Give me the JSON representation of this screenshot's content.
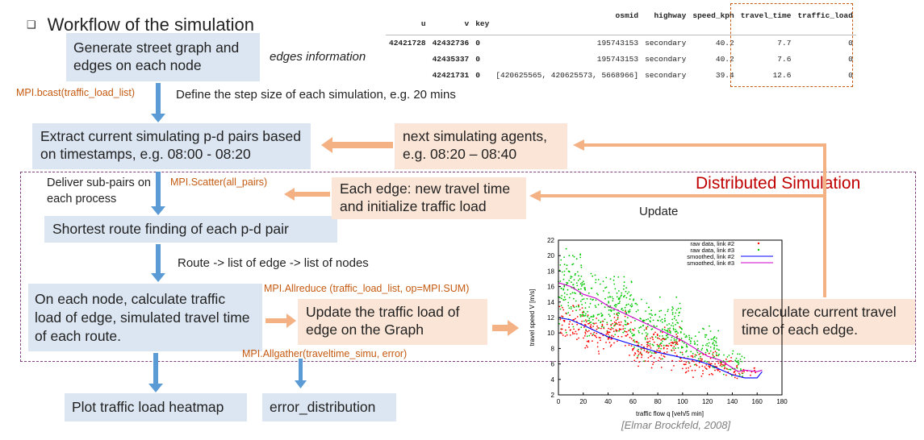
{
  "title": {
    "bullet": "❑",
    "text": "Workflow of the simulation"
  },
  "boxes": {
    "generate": "Generate street graph and edges on each node",
    "extract": "Extract current simulating p-d pairs based on timestamps, e.g. 08:00 - 08:20",
    "next_agents": "next simulating agents, e.g. 08:20 – 08:40",
    "each_edge": "Each edge: new travel time and initialize traffic load",
    "shortest": "Shortest route finding of each p-d pair",
    "calculate": "On each node, calculate traffic load of edge, simulated travel time of each route.",
    "update_load": "Update the traffic load of edge on the Graph",
    "recalculate": "recalculate current travel time of each edge.",
    "plot": "Plot traffic load heatmap",
    "error": "error_distribution"
  },
  "notes": {
    "edges_info": "edges information",
    "step_size": "Define the step size of each simulation, e.g. 20 mins",
    "deliver": "Deliver sub-pairs on each process",
    "route": "Route -> list of edge -> list of nodes",
    "update": "Update",
    "distributed": "Distributed Simulation",
    "citation": "[Elmar Brockfeld, 2008]"
  },
  "mpi": {
    "bcast": "MPI.bcast(traffic_load_list)",
    "scatter": "MPI.Scatter(all_pairs)",
    "allreduce": "MPI.Allreduce (traffic_load_list, op=MPI.SUM)",
    "allgather": "MPI.Allgather(traveltime_simu, error)"
  },
  "edges_table": {
    "columns": [
      "u",
      "v",
      "key",
      "osmid",
      "highway",
      "speed_kph",
      "travel_time",
      "traffic_load"
    ],
    "rows": [
      [
        "42421728",
        "42432736",
        "0",
        "195743153",
        "secondary",
        "40.2",
        "7.7",
        "0"
      ],
      [
        "",
        "42435337",
        "0",
        "195743153",
        "secondary",
        "40.2",
        "7.6",
        "0"
      ],
      [
        "",
        "42421731",
        "0",
        "[420625565, 420625573, 5668966]",
        "secondary",
        "39.4",
        "12.6",
        "0"
      ]
    ]
  },
  "colors": {
    "blue_box": "#dce6f2",
    "peach_box": "#fbe5d6",
    "arrow_blue": "#5b9bd5",
    "arrow_peach": "#f4b183",
    "mpi_text": "#c55a11",
    "distributed": "#c00000",
    "dashed_frame": "#7f3f7f"
  },
  "chart_data": {
    "type": "scatter",
    "xlabel": "traffic flow q [veh/5 min]",
    "ylabel": "travel speed V [m/s]",
    "xlim": [
      0,
      180
    ],
    "ylim": [
      2,
      22
    ],
    "xticks": [
      "0",
      "20",
      "40",
      "60",
      "80",
      "100",
      "120",
      "140",
      "160",
      "180"
    ],
    "yticks": [
      "2",
      "4",
      "6",
      "8",
      "10",
      "12",
      "14",
      "16",
      "18",
      "20",
      "22"
    ],
    "legend": {
      "placement": "top-right",
      "entries": [
        "raw data, link #2",
        "raw data, link #3",
        "smoothed, link #2",
        "smoothed, link #3"
      ]
    },
    "series": [
      {
        "name": "raw data, link #2",
        "kind": "scatter",
        "color": "#ff0000",
        "bands": [
          {
            "x": [
              0,
              20
            ],
            "y": [
              9,
              14
            ]
          },
          {
            "x": [
              20,
              60
            ],
            "y": [
              7,
              13
            ]
          },
          {
            "x": [
              60,
              100
            ],
            "y": [
              5,
              11
            ]
          },
          {
            "x": [
              100,
              140
            ],
            "y": [
              4,
              8
            ]
          },
          {
            "x": [
              140,
              160
            ],
            "y": [
              4,
              6
            ]
          }
        ]
      },
      {
        "name": "raw data, link #3",
        "kind": "scatter",
        "color": "#00c800",
        "bands": [
          {
            "x": [
              0,
              20
            ],
            "y": [
              10,
              21
            ]
          },
          {
            "x": [
              20,
              60
            ],
            "y": [
              9,
              18
            ]
          },
          {
            "x": [
              60,
              100
            ],
            "y": [
              6,
              15
            ]
          },
          {
            "x": [
              100,
              130
            ],
            "y": [
              5,
              11
            ]
          },
          {
            "x": [
              130,
              150
            ],
            "y": [
              4,
              8
            ]
          }
        ]
      },
      {
        "name": "smoothed, link #2",
        "kind": "line",
        "color": "#0000ff",
        "x": [
          0,
          10,
          20,
          40,
          60,
          80,
          100,
          110,
          120,
          130,
          140,
          150,
          160,
          164
        ],
        "y": [
          12,
          11.7,
          11,
          9.5,
          8.5,
          7.5,
          6.8,
          6.5,
          6,
          5.3,
          4.6,
          4.2,
          4.2,
          5
        ]
      },
      {
        "name": "smoothed, link #3",
        "kind": "line",
        "color": "#cc00cc",
        "x": [
          0,
          10,
          20,
          30,
          40,
          60,
          80,
          100,
          120,
          130,
          140,
          145,
          150,
          160,
          164
        ],
        "y": [
          16.5,
          16,
          15,
          14.5,
          13.5,
          12,
          10.5,
          9,
          7,
          6.5,
          5.5,
          5,
          5.2,
          5,
          5.2
        ]
      }
    ]
  }
}
